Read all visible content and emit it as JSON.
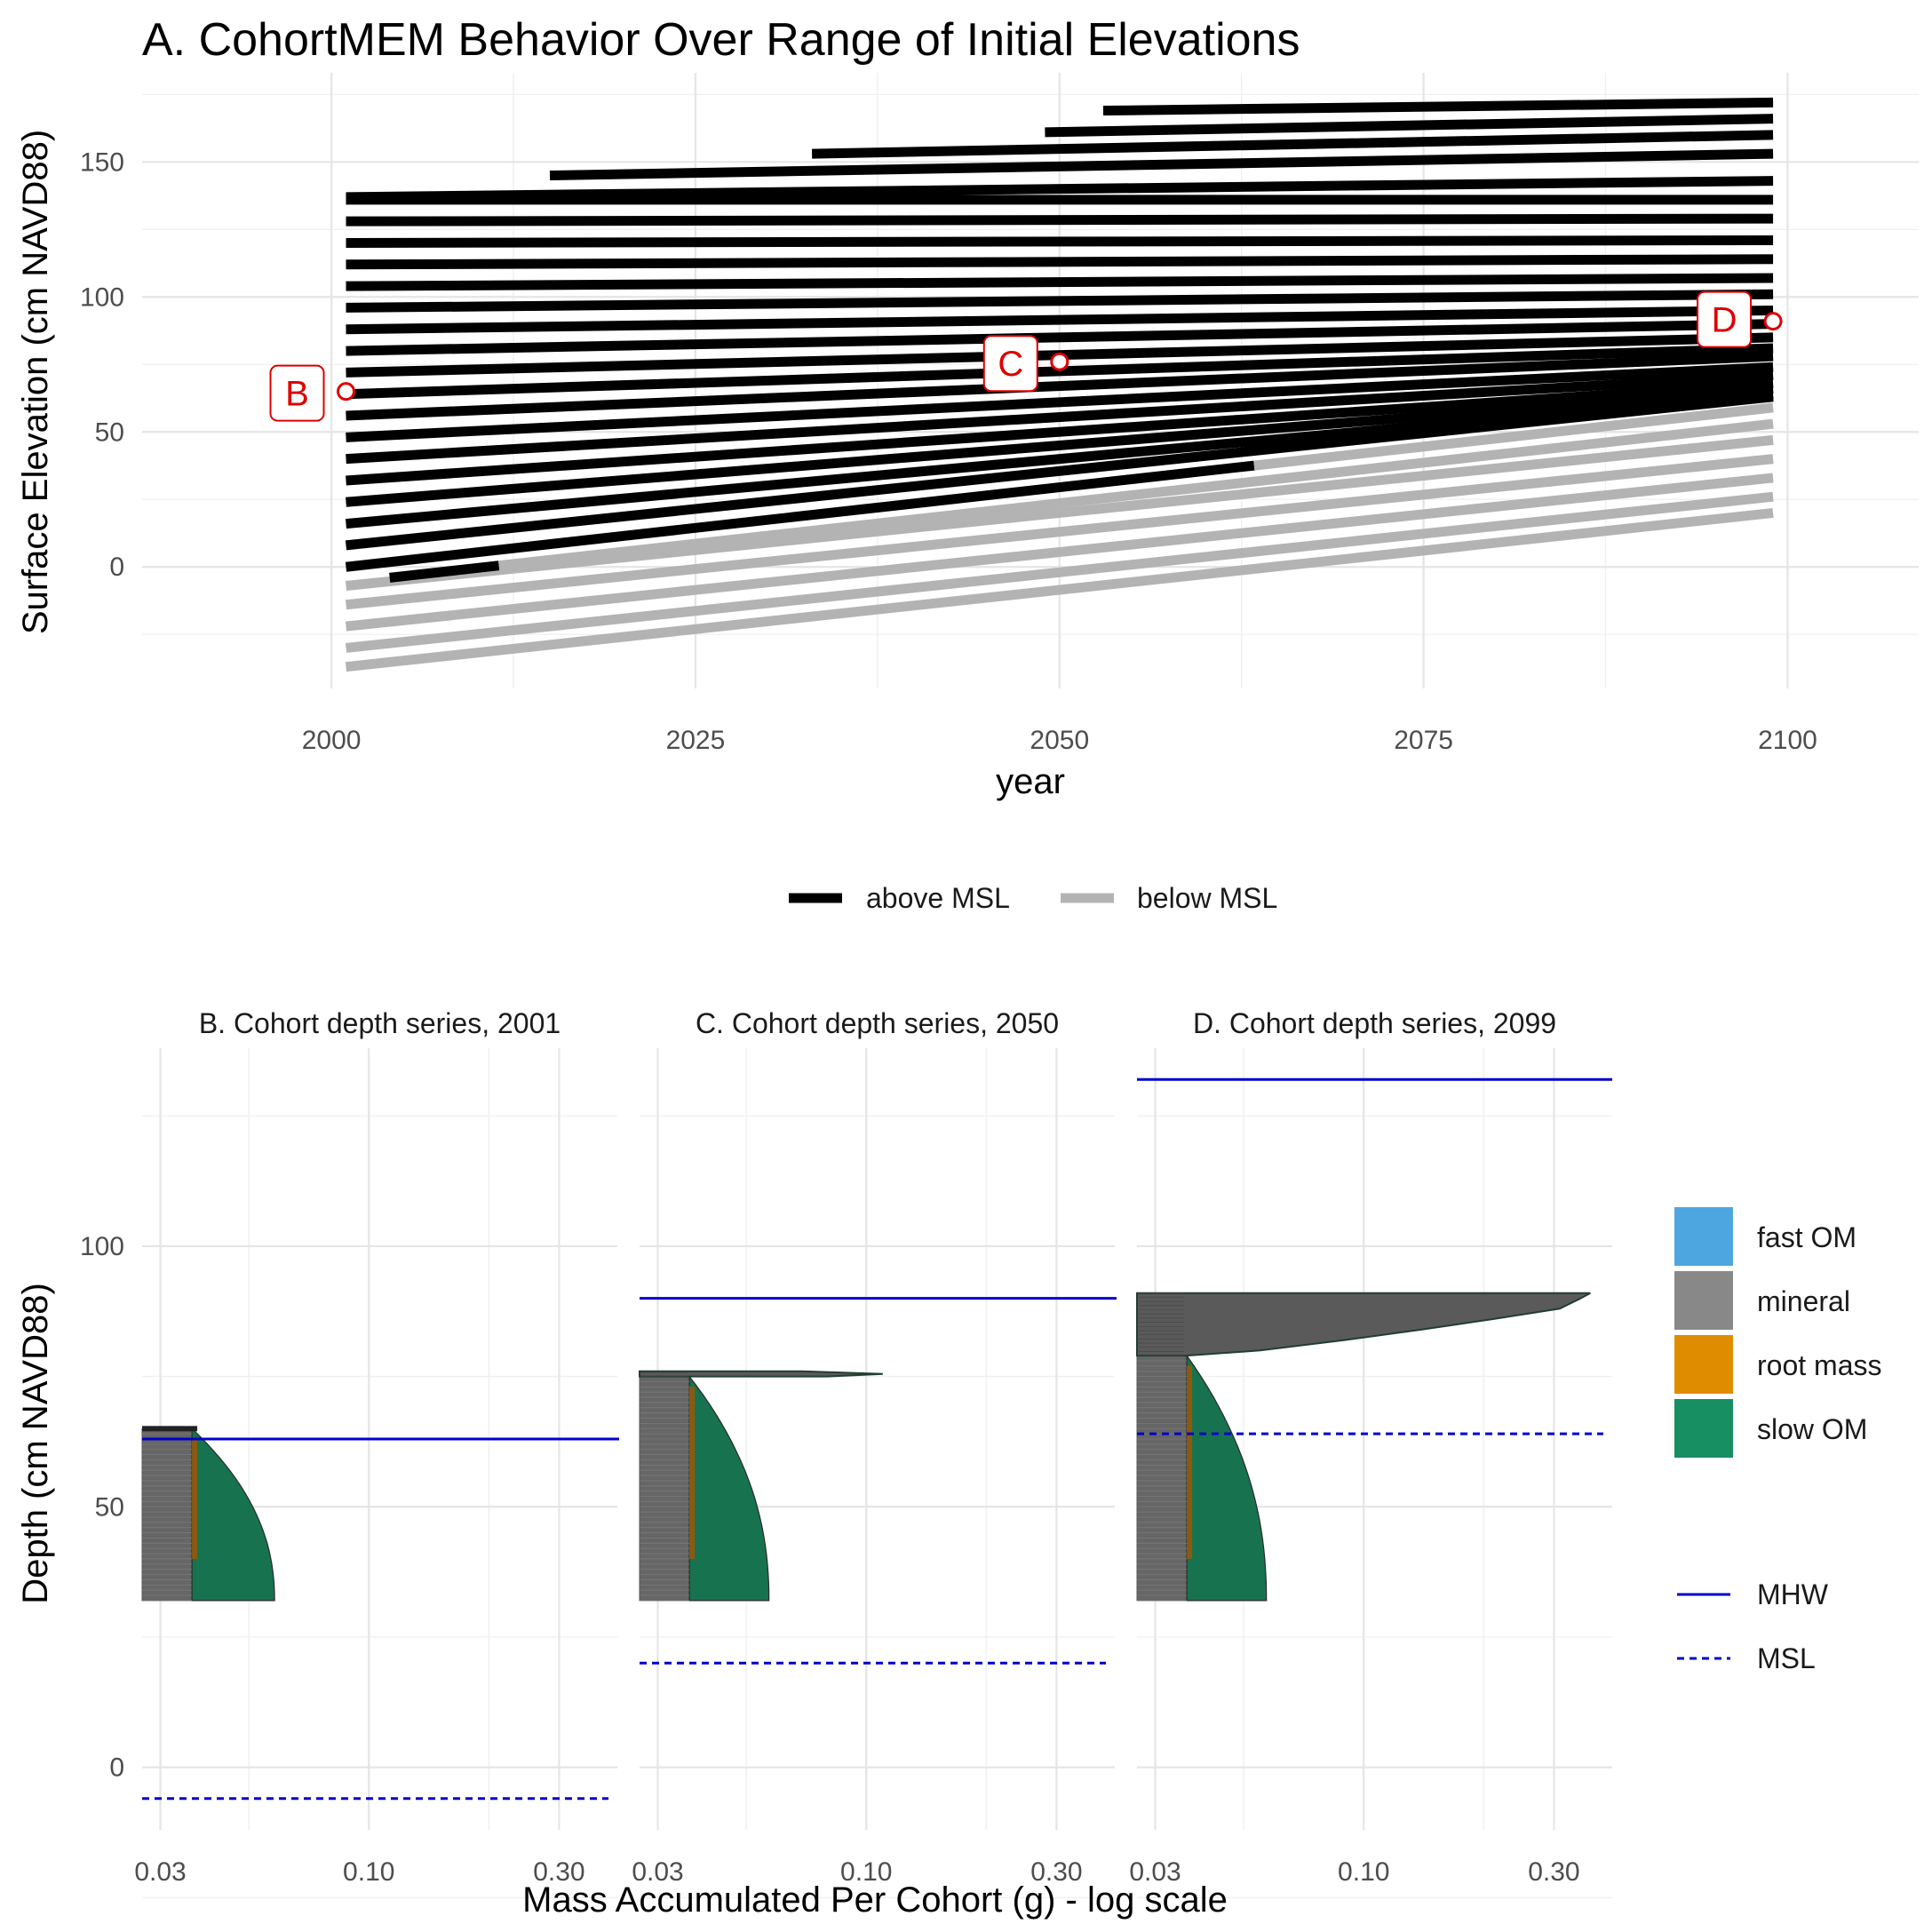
{
  "chart_data": [
    {
      "type": "line",
      "title": "A. CohortMEM Behavior Over Range of Initial Elevations",
      "xlabel": "year",
      "ylabel": "Surface Elevation (cm NAVD88)",
      "xlim": [
        1987,
        2109
      ],
      "ylim": [
        -45,
        183
      ],
      "x_ticks": [
        "2000",
        "2025",
        "2050",
        "2075",
        "2100"
      ],
      "y_ticks": [
        "0",
        "50",
        "100",
        "150"
      ],
      "grid": true,
      "legend": {
        "position": "bottom",
        "entries": [
          {
            "label": "above MSL",
            "color": "#000000"
          },
          {
            "label": "below MSL",
            "color": "#b3b3b3"
          }
        ]
      },
      "msl_line": {
        "x": [
          2001,
          2099
        ],
        "y": [
          -7,
          63
        ]
      },
      "trajectories": [
        {
          "x": [
            2001,
            2099
          ],
          "y": [
            -37,
            20
          ]
        },
        {
          "x": [
            2001,
            2099
          ],
          "y": [
            -30,
            26
          ]
        },
        {
          "x": [
            2001,
            2099
          ],
          "y": [
            -22,
            33
          ]
        },
        {
          "x": [
            2001,
            2099
          ],
          "y": [
            -14,
            40
          ]
        },
        {
          "x": [
            2001,
            2099
          ],
          "y": [
            -7,
            47
          ]
        },
        {
          "x": [
            2004,
            2099
          ],
          "y": [
            -4,
            53
          ]
        },
        {
          "x": [
            2001,
            2099
          ],
          "y": [
            0,
            59
          ]
        },
        {
          "x": [
            2001,
            2099
          ],
          "y": [
            8,
            63
          ]
        },
        {
          "x": [
            2001,
            2099
          ],
          "y": [
            16,
            64
          ]
        },
        {
          "x": [
            2001,
            2099
          ],
          "y": [
            24,
            66
          ]
        },
        {
          "x": [
            2001,
            2099
          ],
          "y": [
            32,
            68
          ]
        },
        {
          "x": [
            2001,
            2099
          ],
          "y": [
            40,
            71
          ]
        },
        {
          "x": [
            2001,
            2099
          ],
          "y": [
            48,
            74
          ]
        },
        {
          "x": [
            2001,
            2099
          ],
          "y": [
            56,
            78
          ]
        },
        {
          "x": [
            2001,
            2099
          ],
          "y": [
            64,
            81
          ]
        },
        {
          "x": [
            2001,
            2099
          ],
          "y": [
            72,
            85
          ]
        },
        {
          "x": [
            2001,
            2099
          ],
          "y": [
            80,
            90
          ]
        },
        {
          "x": [
            2001,
            2099
          ],
          "y": [
            88,
            95
          ]
        },
        {
          "x": [
            2001,
            2099
          ],
          "y": [
            96,
            101
          ]
        },
        {
          "x": [
            2001,
            2099
          ],
          "y": [
            104,
            107
          ]
        },
        {
          "x": [
            2001,
            2099
          ],
          "y": [
            112,
            114
          ]
        },
        {
          "x": [
            2001,
            2099
          ],
          "y": [
            120,
            121
          ]
        },
        {
          "x": [
            2001,
            2099
          ],
          "y": [
            128,
            129
          ]
        },
        {
          "x": [
            2001,
            2099
          ],
          "y": [
            136,
            136
          ]
        },
        {
          "x": [
            2001,
            2099
          ],
          "y": [
            137,
            143
          ]
        },
        {
          "x": [
            2015,
            2099
          ],
          "y": [
            145,
            153
          ]
        },
        {
          "x": [
            2033,
            2099
          ],
          "y": [
            153,
            160
          ]
        },
        {
          "x": [
            2049,
            2099
          ],
          "y": [
            161,
            166
          ]
        },
        {
          "x": [
            2053,
            2099
          ],
          "y": [
            169,
            172
          ]
        }
      ],
      "annotations": [
        {
          "label": "B",
          "x": 2001,
          "y": 65
        },
        {
          "label": "C",
          "x": 2050,
          "y": 76
        },
        {
          "label": "D",
          "x": 2099,
          "y": 91
        }
      ]
    },
    {
      "type": "area",
      "xlabel": "Mass Accumulated Per Cohort (g) - log scale",
      "ylabel": "Depth (cm NAVD88)",
      "x_scale": "log",
      "xlim": [
        0.027,
        0.42
      ],
      "ylim": [
        -12,
        138
      ],
      "x_ticks": [
        "0.03",
        "0.10",
        "0.30"
      ],
      "y_ticks": [
        "0",
        "50",
        "100"
      ],
      "grid": true,
      "legend": {
        "position": "right",
        "fill_entries": [
          {
            "label": "fast OM",
            "color": "#4ea6e0"
          },
          {
            "label": "mineral",
            "color": "#888888"
          },
          {
            "label": "root mass",
            "color": "#e08c00"
          },
          {
            "label": "slow OM",
            "color": "#178f62"
          }
        ],
        "line_entries": [
          {
            "label": "MHW",
            "color": "#0000cc",
            "dash": "solid"
          },
          {
            "label": "MSL",
            "color": "#0000cc",
            "dash": "dashed"
          }
        ]
      },
      "panels": [
        {
          "title": "B. Cohort depth series, 2001",
          "mhw": 63,
          "msl": -6,
          "profile": {
            "depth_bottom": 32,
            "depth_top": 65,
            "mineral_max": 0.036,
            "slow_om_max": 0.058,
            "spike": []
          }
        },
        {
          "title": "C. Cohort depth series, 2050",
          "mhw": 90,
          "msl": 20,
          "profile": {
            "depth_bottom": 32,
            "depth_top": 75,
            "mineral_max": 0.036,
            "slow_om_max": 0.057,
            "spike": [
              {
                "depth": 76,
                "mass": 0.069
              },
              {
                "depth": 75.5,
                "mass": 0.11
              },
              {
                "depth": 75,
                "mass": 0.08
              }
            ]
          }
        },
        {
          "title": "D. Cohort depth series, 2099",
          "mhw": 132,
          "msl": 64,
          "profile": {
            "depth_bottom": 32,
            "depth_top": 79,
            "mineral_max": 0.036,
            "slow_om_max": 0.057,
            "spike": [
              {
                "depth": 91,
                "mass": 0.37
              },
              {
                "depth": 90,
                "mass": 0.35
              },
              {
                "depth": 88,
                "mass": 0.31
              },
              {
                "depth": 86,
                "mass": 0.21
              },
              {
                "depth": 84,
                "mass": 0.14
              },
              {
                "depth": 82,
                "mass": 0.09
              },
              {
                "depth": 80,
                "mass": 0.055
              }
            ]
          }
        }
      ]
    }
  ]
}
